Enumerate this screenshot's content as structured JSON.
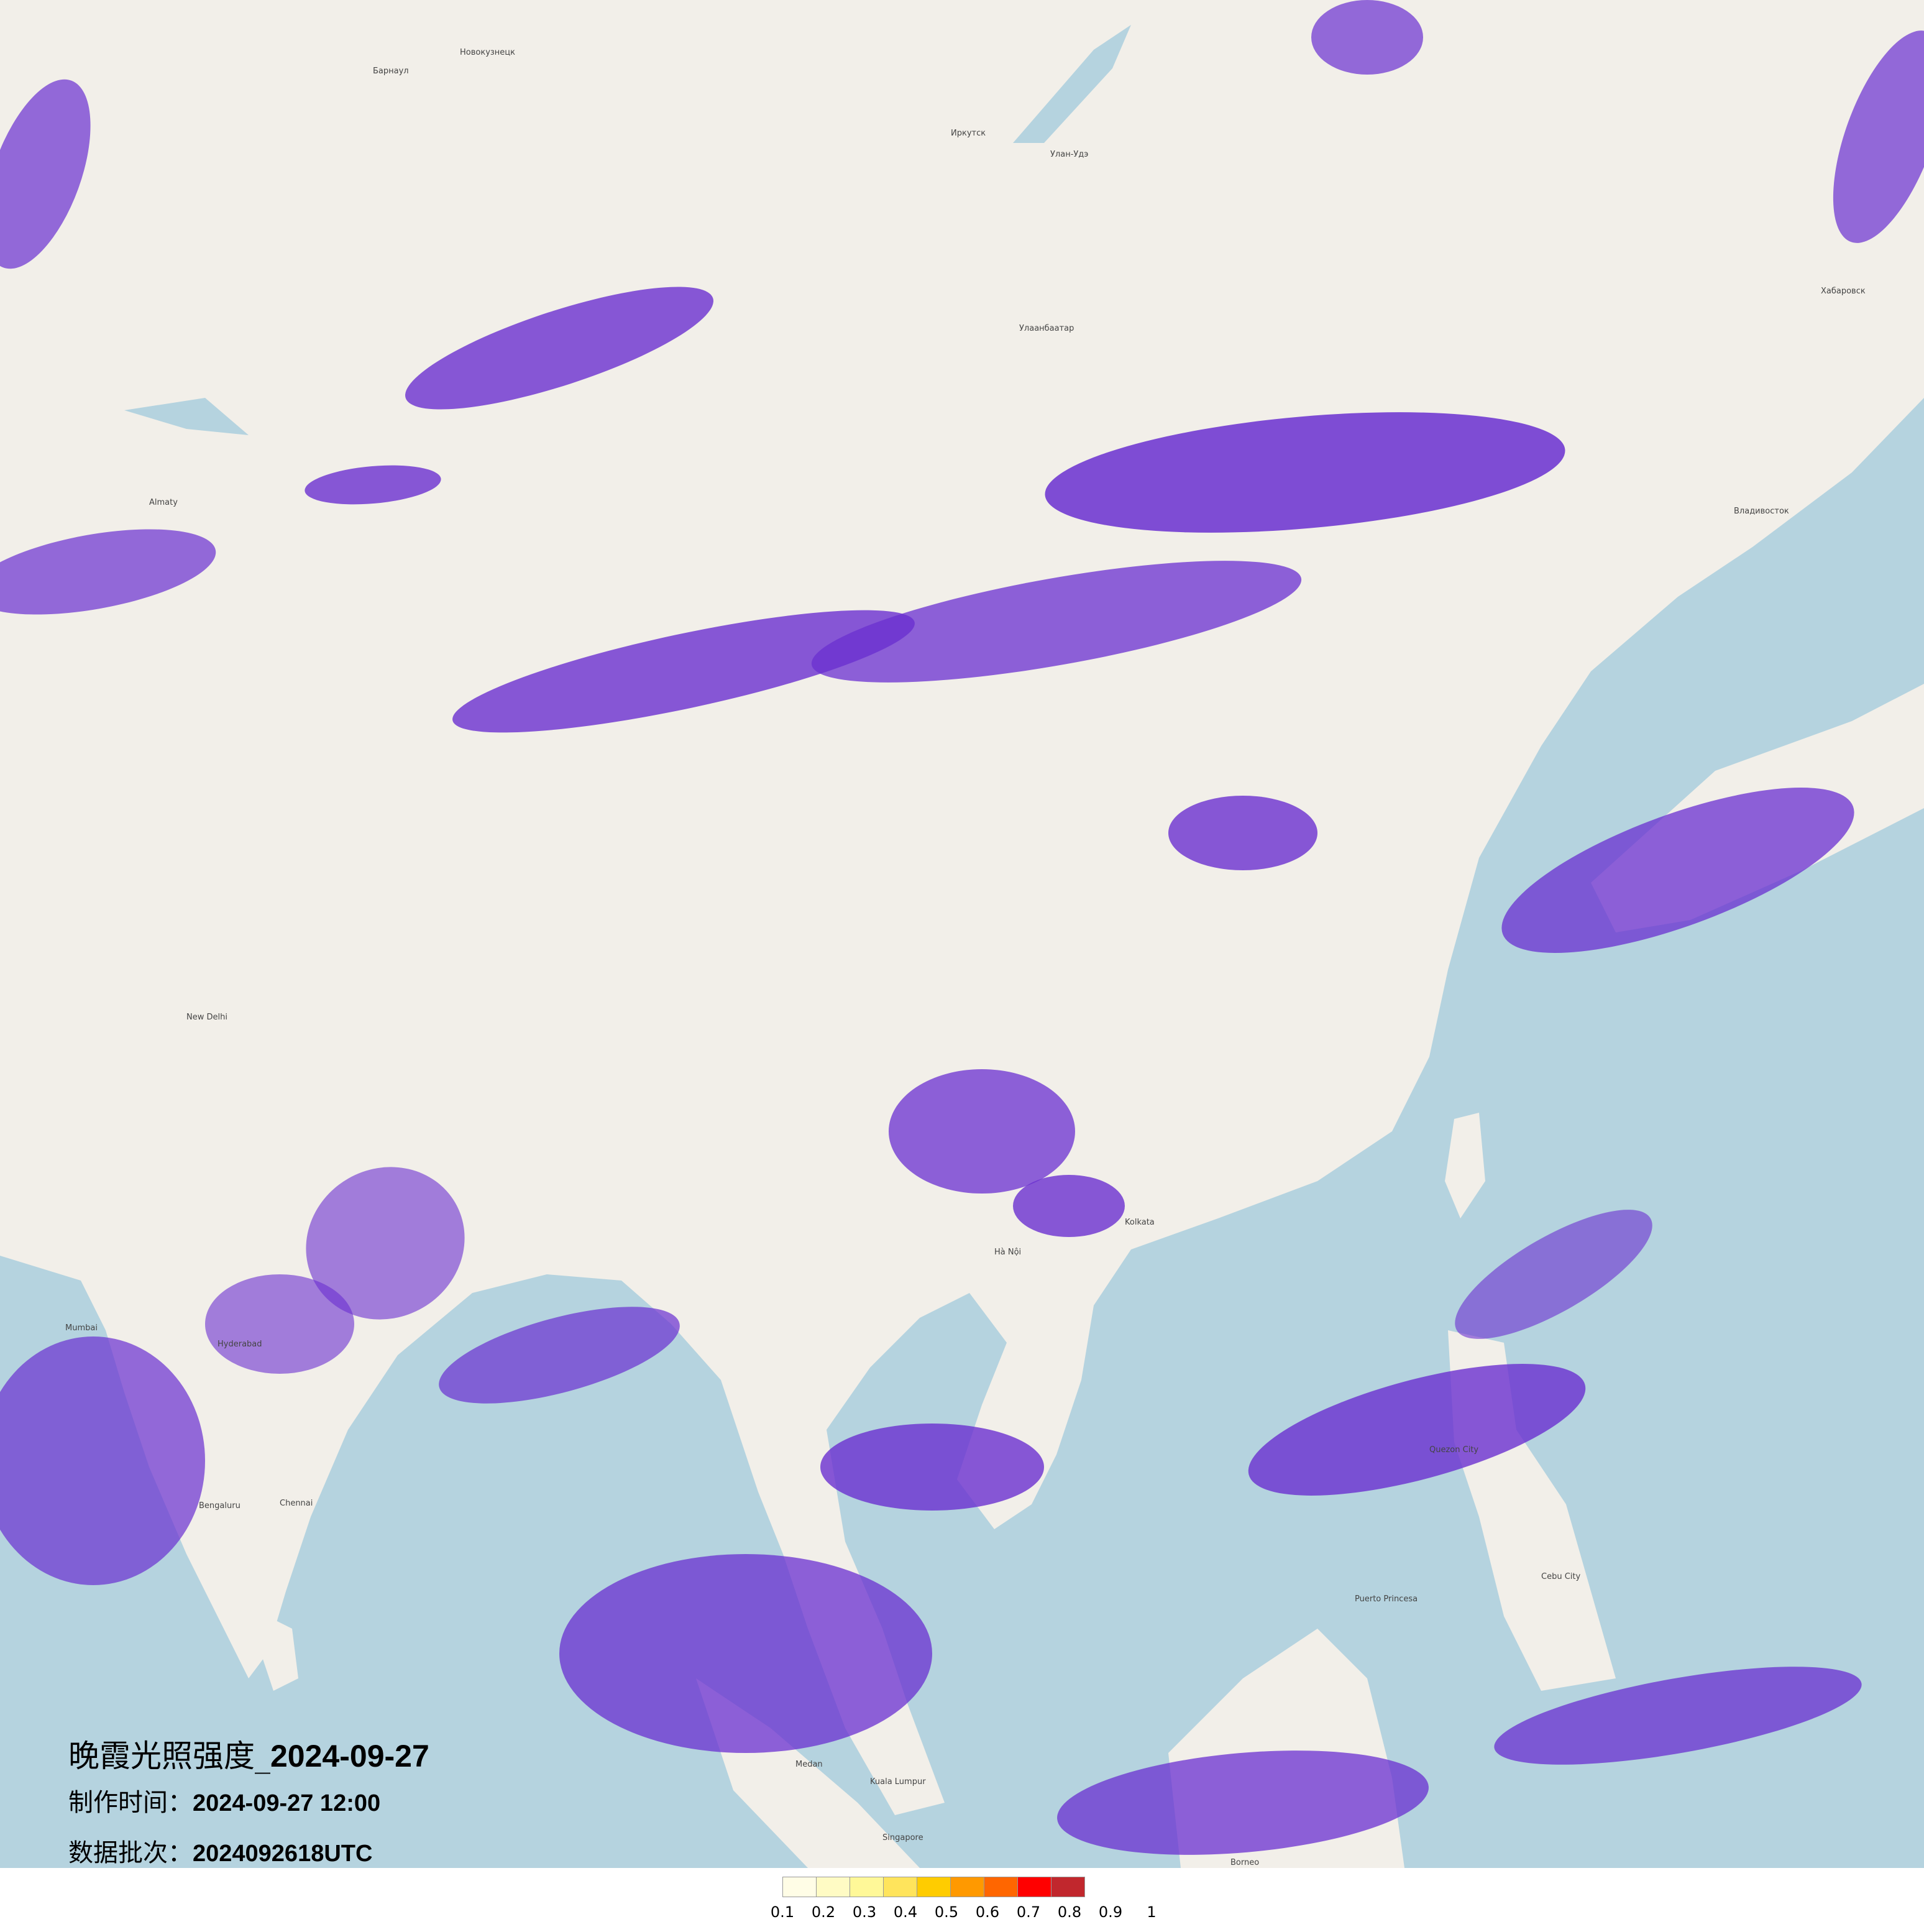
{
  "title": {
    "main_label": "晚霞光照强度_",
    "main_date": "2024-09-27",
    "made_label": "制作时间：",
    "made_value": "2024-09-27 12:00",
    "batch_label": "数据批次：",
    "batch_value": "2024092618UTC"
  },
  "map": {
    "land_color": "#f2efe9",
    "water_color": "#b5d3df",
    "overlay_color": "#6a2fd0",
    "cities": [
      "Барнаул",
      "Новокузнецк",
      "Иркутск",
      "Улан-Удэ",
      "Улаанбаатар",
      "Хабаровск",
      "Владивосток",
      "Almaty",
      "New Delhi",
      "Kolkata",
      "Hà Nội",
      "Quezon City",
      "Cebu City",
      "Kuala Lumpur",
      "Singapore",
      "Borneo",
      "Hyderabad",
      "Mumbai",
      "Bengaluru",
      "Chennai",
      "Puerto Princesa",
      "Medan"
    ]
  },
  "legend": {
    "colors": [
      "#fffde6",
      "#fffbc4",
      "#fff898",
      "#ffe45c",
      "#ffcc00",
      "#ff9900",
      "#ff6600",
      "#ff0000",
      "#c1272d"
    ],
    "labels": [
      "0.1",
      "0.2",
      "0.3",
      "0.4",
      "0.5",
      "0.6",
      "0.7",
      "0.8",
      "0.9",
      "1"
    ]
  }
}
